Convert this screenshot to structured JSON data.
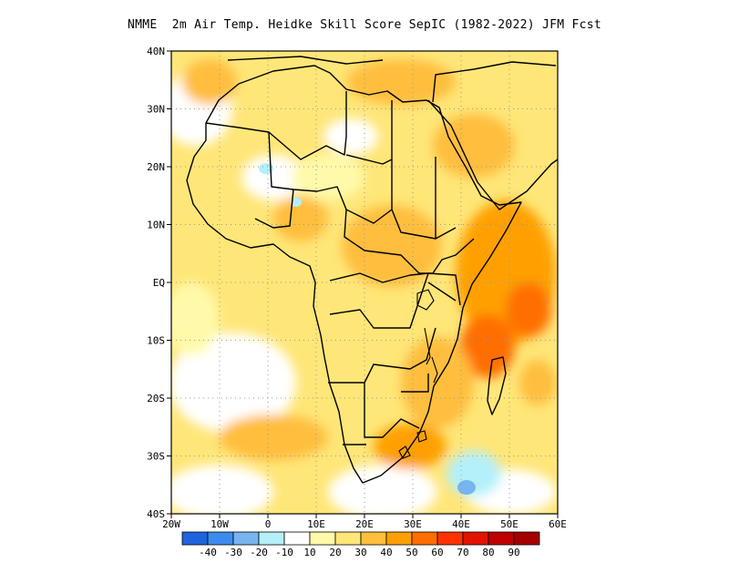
{
  "title": "NMME  2m Air Temp. Heidke Skill Score SepIC (1982-2022) JFM Fcst",
  "map": {
    "lat_ticks": [
      "40N",
      "30N",
      "20N",
      "10N",
      "EQ",
      "10S",
      "20S",
      "30S",
      "40S"
    ],
    "lon_ticks": [
      "20W",
      "10W",
      "0",
      "10E",
      "20E",
      "30E",
      "40E",
      "50E",
      "60E"
    ],
    "lat_range": [
      -40,
      40
    ],
    "lon_range": [
      -20,
      60
    ],
    "grid": "dotted"
  },
  "colorbar": {
    "labels": [
      "-40",
      "-30",
      "-20",
      "-10",
      "10",
      "20",
      "30",
      "40",
      "50",
      "60",
      "70",
      "80",
      "90"
    ],
    "colors": [
      "#1e64dc",
      "#3c8cf0",
      "#78b4f0",
      "#b4f0fa",
      "#ffffff",
      "#fffaaa",
      "#ffe678",
      "#ffbe3c",
      "#ffa000",
      "#ff6e00",
      "#ff3200",
      "#e11400",
      "#c00000",
      "#a50000"
    ]
  }
}
